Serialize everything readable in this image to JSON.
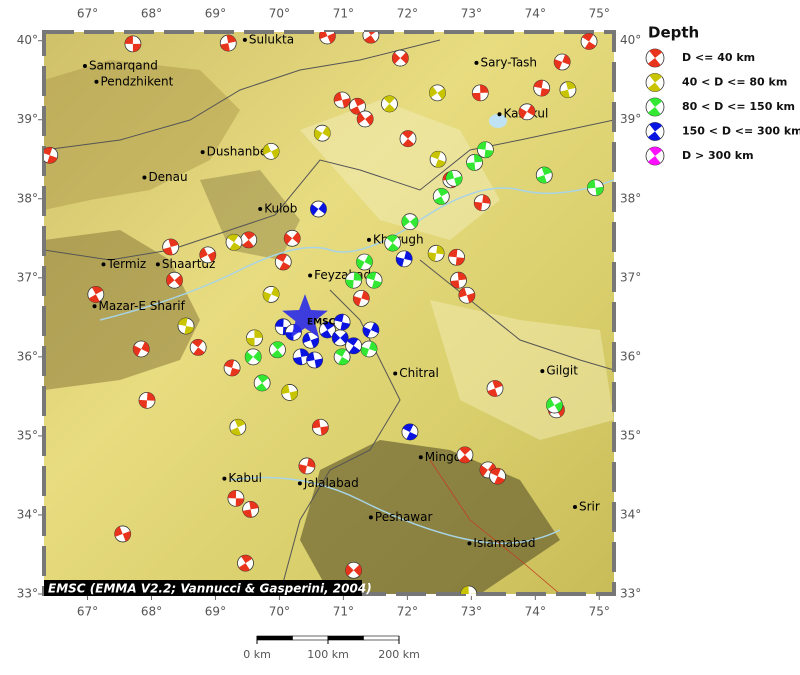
{
  "map": {
    "xlim": [
      66.32,
      75.23
    ],
    "ylim": [
      33.0,
      40.11
    ],
    "xticks": [
      {
        "value": 67,
        "label": "67°"
      },
      {
        "value": 68,
        "label": "68°"
      },
      {
        "value": 69,
        "label": "69°"
      },
      {
        "value": 70,
        "label": "70°"
      },
      {
        "value": 71,
        "label": "71°"
      },
      {
        "value": 72,
        "label": "72°"
      },
      {
        "value": 73,
        "label": "73°"
      },
      {
        "value": 74,
        "label": "74°"
      },
      {
        "value": 75,
        "label": "75°"
      }
    ],
    "yticks": [
      {
        "value": 33,
        "label": "33°"
      },
      {
        "value": 34,
        "label": "34°"
      },
      {
        "value": 35,
        "label": "35°"
      },
      {
        "value": 36,
        "label": "36°"
      },
      {
        "value": 37,
        "label": "37°"
      },
      {
        "value": 38,
        "label": "38°"
      },
      {
        "value": 39,
        "label": "39°"
      },
      {
        "value": 40,
        "label": "40°"
      }
    ],
    "cities": [
      {
        "name": "Sulukta",
        "lon": 69.46,
        "lat": 40.01
      },
      {
        "name": "Samarqand",
        "lon": 66.96,
        "lat": 39.68
      },
      {
        "name": "Pendzhikent",
        "lon": 67.14,
        "lat": 39.48
      },
      {
        "name": "Sary-Tash",
        "lon": 73.08,
        "lat": 39.72
      },
      {
        "name": "Karakul",
        "lon": 73.44,
        "lat": 39.07
      },
      {
        "name": "Dushanbe",
        "lon": 68.8,
        "lat": 38.59
      },
      {
        "name": "Denau",
        "lon": 67.89,
        "lat": 38.27
      },
      {
        "name": "Kulob",
        "lon": 69.7,
        "lat": 37.87
      },
      {
        "name": "Khorugh",
        "lon": 71.4,
        "lat": 37.48
      },
      {
        "name": "Termiz",
        "lon": 67.25,
        "lat": 37.17
      },
      {
        "name": "Shaartuz",
        "lon": 68.1,
        "lat": 37.17
      },
      {
        "name": "Feyzabad",
        "lon": 70.48,
        "lat": 37.03
      },
      {
        "name": "Mazar-E Sharif",
        "lon": 67.11,
        "lat": 36.64
      },
      {
        "name": "Chitral",
        "lon": 71.81,
        "lat": 35.79
      },
      {
        "name": "Gilgit",
        "lon": 74.11,
        "lat": 35.82
      },
      {
        "name": "Mingora",
        "lon": 72.21,
        "lat": 34.73
      },
      {
        "name": "Kabul",
        "lon": 69.14,
        "lat": 34.46
      },
      {
        "name": "Jalalabad",
        "lon": 70.32,
        "lat": 34.4
      },
      {
        "name": "Peshawar",
        "lon": 71.43,
        "lat": 33.97
      },
      {
        "name": "Islamabad",
        "lon": 72.97,
        "lat": 33.64
      },
      {
        "name": "Srir",
        "lon": 74.62,
        "lat": 34.1
      }
    ],
    "star": {
      "label": "EMSC",
      "lon": 70.4,
      "lat": 36.49
    },
    "events": [
      {
        "lon": 67.71,
        "lat": 39.96,
        "depth_class": 0
      },
      {
        "lon": 69.2,
        "lat": 39.97,
        "depth_class": 0
      },
      {
        "lon": 70.75,
        "lat": 40.06,
        "depth_class": 0
      },
      {
        "lon": 71.43,
        "lat": 40.07,
        "depth_class": 0
      },
      {
        "lon": 71.89,
        "lat": 39.78,
        "depth_class": 0
      },
      {
        "lon": 74.84,
        "lat": 39.99,
        "depth_class": 0
      },
      {
        "lon": 74.42,
        "lat": 39.73,
        "depth_class": 0
      },
      {
        "lon": 74.1,
        "lat": 39.4,
        "depth_class": 0
      },
      {
        "lon": 73.14,
        "lat": 39.34,
        "depth_class": 0
      },
      {
        "lon": 70.98,
        "lat": 39.25,
        "depth_class": 0
      },
      {
        "lon": 71.22,
        "lat": 39.17,
        "depth_class": 0
      },
      {
        "lon": 71.34,
        "lat": 39.01,
        "depth_class": 0
      },
      {
        "lon": 72.01,
        "lat": 38.76,
        "depth_class": 0
      },
      {
        "lon": 73.87,
        "lat": 39.1,
        "depth_class": 0
      },
      {
        "lon": 66.41,
        "lat": 38.55,
        "depth_class": 0
      },
      {
        "lon": 73.17,
        "lat": 37.95,
        "depth_class": 0
      },
      {
        "lon": 72.68,
        "lat": 38.24,
        "depth_class": 0
      },
      {
        "lon": 68.3,
        "lat": 37.39,
        "depth_class": 0
      },
      {
        "lon": 68.88,
        "lat": 37.29,
        "depth_class": 0
      },
      {
        "lon": 69.52,
        "lat": 37.48,
        "depth_class": 0
      },
      {
        "lon": 70.2,
        "lat": 37.5,
        "depth_class": 0
      },
      {
        "lon": 70.06,
        "lat": 37.2,
        "depth_class": 0
      },
      {
        "lon": 71.28,
        "lat": 36.74,
        "depth_class": 0
      },
      {
        "lon": 72.77,
        "lat": 37.26,
        "depth_class": 0
      },
      {
        "lon": 72.8,
        "lat": 36.97,
        "depth_class": 0
      },
      {
        "lon": 72.93,
        "lat": 36.78,
        "depth_class": 0
      },
      {
        "lon": 67.13,
        "lat": 36.79,
        "depth_class": 0
      },
      {
        "lon": 68.36,
        "lat": 36.97,
        "depth_class": 0
      },
      {
        "lon": 68.73,
        "lat": 36.12,
        "depth_class": 0
      },
      {
        "lon": 67.84,
        "lat": 36.1,
        "depth_class": 0
      },
      {
        "lon": 69.26,
        "lat": 35.86,
        "depth_class": 0
      },
      {
        "lon": 67.93,
        "lat": 35.45,
        "depth_class": 0
      },
      {
        "lon": 70.64,
        "lat": 35.11,
        "depth_class": 0
      },
      {
        "lon": 73.37,
        "lat": 35.6,
        "depth_class": 0
      },
      {
        "lon": 74.33,
        "lat": 35.33,
        "depth_class": 0
      },
      {
        "lon": 72.9,
        "lat": 34.76,
        "depth_class": 0
      },
      {
        "lon": 73.26,
        "lat": 34.57,
        "depth_class": 0
      },
      {
        "lon": 73.41,
        "lat": 34.49,
        "depth_class": 0
      },
      {
        "lon": 70.43,
        "lat": 34.62,
        "depth_class": 0
      },
      {
        "lon": 69.32,
        "lat": 34.21,
        "depth_class": 0
      },
      {
        "lon": 69.55,
        "lat": 34.07,
        "depth_class": 0
      },
      {
        "lon": 67.55,
        "lat": 33.76,
        "depth_class": 0
      },
      {
        "lon": 69.47,
        "lat": 33.39,
        "depth_class": 0
      },
      {
        "lon": 71.16,
        "lat": 33.3,
        "depth_class": 0
      },
      {
        "lon": 69.29,
        "lat": 37.45,
        "depth_class": 1
      },
      {
        "lon": 69.87,
        "lat": 36.79,
        "depth_class": 1
      },
      {
        "lon": 68.54,
        "lat": 36.39,
        "depth_class": 1
      },
      {
        "lon": 69.61,
        "lat": 36.24,
        "depth_class": 1
      },
      {
        "lon": 70.16,
        "lat": 35.55,
        "depth_class": 1
      },
      {
        "lon": 69.35,
        "lat": 35.11,
        "depth_class": 1
      },
      {
        "lon": 72.47,
        "lat": 39.34,
        "depth_class": 1
      },
      {
        "lon": 71.72,
        "lat": 39.2,
        "depth_class": 1
      },
      {
        "lon": 70.67,
        "lat": 38.83,
        "depth_class": 1
      },
      {
        "lon": 72.48,
        "lat": 38.5,
        "depth_class": 1
      },
      {
        "lon": 72.45,
        "lat": 37.31,
        "depth_class": 1
      },
      {
        "lon": 72.96,
        "lat": 33.0,
        "depth_class": 1
      },
      {
        "lon": 74.51,
        "lat": 39.38,
        "depth_class": 1
      },
      {
        "lon": 69.87,
        "lat": 38.6,
        "depth_class": 1
      },
      {
        "lon": 69.73,
        "lat": 35.67,
        "depth_class": 2
      },
      {
        "lon": 69.59,
        "lat": 36.0,
        "depth_class": 2
      },
      {
        "lon": 70.98,
        "lat": 36.0,
        "depth_class": 2
      },
      {
        "lon": 71.4,
        "lat": 36.1,
        "depth_class": 2
      },
      {
        "lon": 73.22,
        "lat": 38.62,
        "depth_class": 2
      },
      {
        "lon": 73.05,
        "lat": 38.46,
        "depth_class": 2
      },
      {
        "lon": 72.73,
        "lat": 38.26,
        "depth_class": 2
      },
      {
        "lon": 72.53,
        "lat": 38.03,
        "depth_class": 2
      },
      {
        "lon": 72.04,
        "lat": 37.71,
        "depth_class": 2
      },
      {
        "lon": 71.77,
        "lat": 37.44,
        "depth_class": 2
      },
      {
        "lon": 71.33,
        "lat": 37.2,
        "depth_class": 2
      },
      {
        "lon": 71.48,
        "lat": 36.97,
        "depth_class": 2
      },
      {
        "lon": 71.16,
        "lat": 36.97,
        "depth_class": 2
      },
      {
        "lon": 74.94,
        "lat": 38.14,
        "depth_class": 2
      },
      {
        "lon": 74.14,
        "lat": 38.3,
        "depth_class": 2
      },
      {
        "lon": 74.3,
        "lat": 35.39,
        "depth_class": 2
      },
      {
        "lon": 69.97,
        "lat": 36.09,
        "depth_class": 2
      },
      {
        "lon": 70.61,
        "lat": 37.87,
        "depth_class": 3
      },
      {
        "lon": 72.04,
        "lat": 35.05,
        "depth_class": 3
      },
      {
        "lon": 71.95,
        "lat": 37.24,
        "depth_class": 3
      },
      {
        "lon": 70.06,
        "lat": 36.38,
        "depth_class": 3
      },
      {
        "lon": 70.34,
        "lat": 36.0,
        "depth_class": 3
      },
      {
        "lon": 70.49,
        "lat": 36.21,
        "depth_class": 3
      },
      {
        "lon": 70.75,
        "lat": 36.34,
        "depth_class": 3
      },
      {
        "lon": 70.95,
        "lat": 36.24,
        "depth_class": 3
      },
      {
        "lon": 71.16,
        "lat": 36.14,
        "depth_class": 3
      },
      {
        "lon": 71.43,
        "lat": 36.34,
        "depth_class": 3
      },
      {
        "lon": 70.98,
        "lat": 36.44,
        "depth_class": 3
      },
      {
        "lon": 70.22,
        "lat": 36.31,
        "depth_class": 3
      },
      {
        "lon": 70.55,
        "lat": 35.96,
        "depth_class": 3
      }
    ]
  },
  "legend": {
    "title": "Depth",
    "items": [
      {
        "label": "D <= 40 km",
        "color": "#e8341c"
      },
      {
        "label": "40 < D <= 80 km",
        "color": "#c8c400"
      },
      {
        "label": "80 < D <= 150 km",
        "color": "#33e833"
      },
      {
        "label": "150 < D <= 300 km",
        "color": "#0a14e0"
      },
      {
        "label": "D > 300 km",
        "color": "#ff10ff"
      }
    ]
  },
  "credit": "EMSC (EMMA V2.2; Vannucci & Gasperini, 2004)",
  "scale_bar": {
    "ticks": [
      {
        "value": 0,
        "label": "0 km"
      },
      {
        "value": 100,
        "label": "100 km"
      },
      {
        "value": 200,
        "label": "200 km"
      }
    ]
  }
}
